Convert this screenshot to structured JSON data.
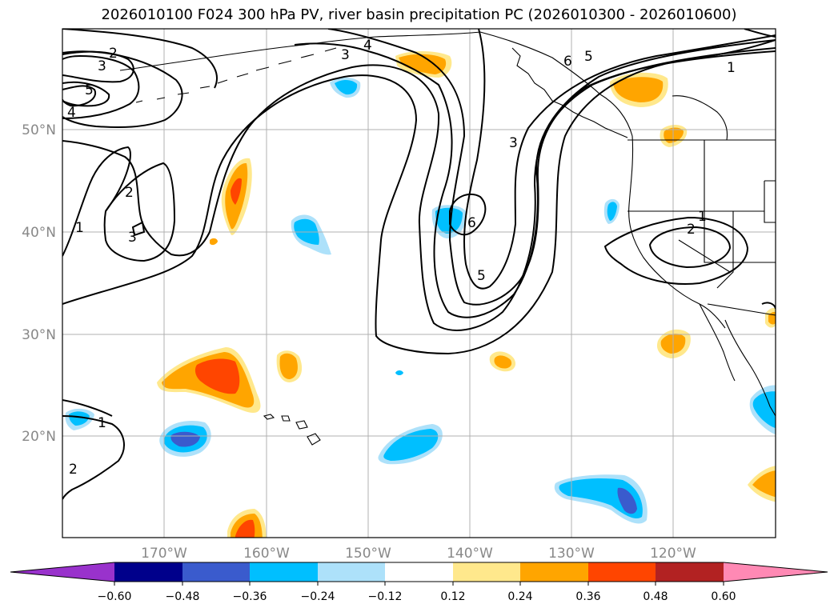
{
  "title": "2026010100 F024 300 hPa PV, river basin precipitation PC (2026010300 - 2026010600)",
  "map": {
    "lon_labels": [
      "170°W",
      "160°W",
      "150°W",
      "140°W",
      "130°W",
      "120°W"
    ],
    "lat_labels": [
      "50°N",
      "40°N",
      "30°N",
      "20°N"
    ]
  },
  "contour_labels": [
    "2",
    "3",
    "4",
    "5",
    "3",
    "4",
    "1",
    "2",
    "3",
    "6",
    "5",
    "3",
    "6",
    "5",
    "1",
    "1",
    "2",
    "1",
    "2"
  ],
  "colorbar": {
    "ticks": [
      "−0.60",
      "−0.48",
      "−0.36",
      "−0.24",
      "−0.12",
      "0.12",
      "0.24",
      "0.36",
      "0.48",
      "0.60"
    ],
    "colors": [
      "#9932CC",
      "#00008B",
      "#3A5BCD",
      "#00BFFF",
      "#ADE1FA",
      "#FFFFFF",
      "#FFE88C",
      "#FFA500",
      "#FF4500",
      "#B22222",
      "#FF89B4"
    ]
  },
  "colors": {
    "neg1": "#ADE1FA",
    "neg2": "#00BFFF",
    "neg3": "#3A5BCD",
    "pos1": "#FFE88C",
    "pos2": "#FFA500",
    "pos3": "#FF4500"
  }
}
